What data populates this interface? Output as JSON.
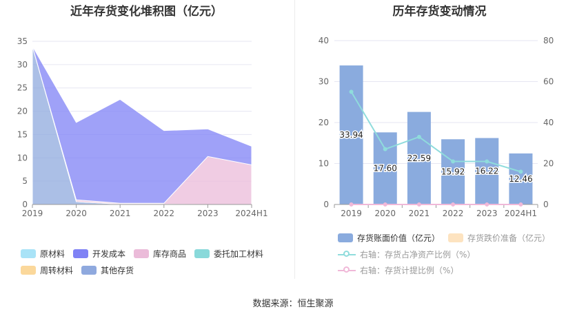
{
  "left": {
    "title": "近年存货变化堆积图（亿元）",
    "legend": [
      {
        "label": "原材料",
        "color": "#a9e3f7"
      },
      {
        "label": "开发成本",
        "color": "#7f82f5"
      },
      {
        "label": "库存商品",
        "color": "#ebbbd9"
      },
      {
        "label": "委托加工材料",
        "color": "#89d9da"
      },
      {
        "label": "周转材料",
        "color": "#fbd89b"
      },
      {
        "label": "其他存货",
        "color": "#8fa9de"
      }
    ]
  },
  "right": {
    "title": "历年存货变动情况",
    "legend": [
      {
        "label": "存货账面价值（亿元）",
        "color": "#8aabde",
        "kind": "bar"
      },
      {
        "label": "存货跌价准备（亿元）",
        "color": "#fde3c0",
        "kind": "bar"
      },
      {
        "label": "右轴：存货占净资产比例（%）",
        "color": "#8fdcdc",
        "kind": "line"
      },
      {
        "label": "右轴：存货计提比例（%）",
        "color": "#f0b8d8",
        "kind": "line"
      }
    ]
  },
  "source": "数据来源：恒生聚源",
  "chart_data": [
    {
      "type": "area",
      "title": "近年存货变化堆积图（亿元）",
      "categories": [
        "2019",
        "2020",
        "2021",
        "2022",
        "2023",
        "2024H1"
      ],
      "ylim": [
        0,
        35
      ],
      "yticks": [
        0,
        5,
        10,
        15,
        20,
        25,
        30,
        35
      ],
      "stacked": true,
      "series": [
        {
          "name": "其他存货",
          "color": "#8fa9de",
          "values": [
            33.9,
            0.6,
            0.05,
            0.05,
            0,
            0
          ]
        },
        {
          "name": "库存商品",
          "color": "#ebbbd9",
          "values": [
            0,
            0.4,
            0.2,
            0.2,
            10.3,
            8.5
          ]
        },
        {
          "name": "开发成本",
          "color": "#7f82f5",
          "values": [
            0.04,
            16.6,
            22.3,
            15.6,
            5.9,
            4.0
          ]
        }
      ]
    },
    {
      "type": "bar",
      "title": "历年存货变动情况",
      "categories": [
        "2019",
        "2020",
        "2021",
        "2022",
        "2023",
        "2024H1"
      ],
      "ylim": [
        0,
        40
      ],
      "yticks": [
        0,
        10,
        20,
        30,
        40
      ],
      "y2lim": [
        0,
        80
      ],
      "y2ticks": [
        0,
        20,
        40,
        60,
        80
      ],
      "series": [
        {
          "name": "存货账面价值（亿元）",
          "axis": "left",
          "kind": "bar",
          "color": "#8aabde",
          "values": [
            33.94,
            17.6,
            22.59,
            15.92,
            16.22,
            12.46
          ],
          "labels": [
            "33.94",
            "17.60",
            "22.59",
            "15.92",
            "16.22",
            "12.46"
          ]
        },
        {
          "name": "右轴：存货占净资产比例（%）",
          "axis": "right",
          "kind": "line",
          "color": "#8fdcdc",
          "values": [
            55.0,
            27.0,
            33.0,
            21.0,
            21.0,
            16.0
          ]
        },
        {
          "name": "右轴：存货计提比例（%）",
          "axis": "right",
          "kind": "line",
          "color": "#f0b8d8",
          "values": [
            0,
            0,
            0,
            0,
            0,
            0
          ]
        }
      ]
    }
  ]
}
